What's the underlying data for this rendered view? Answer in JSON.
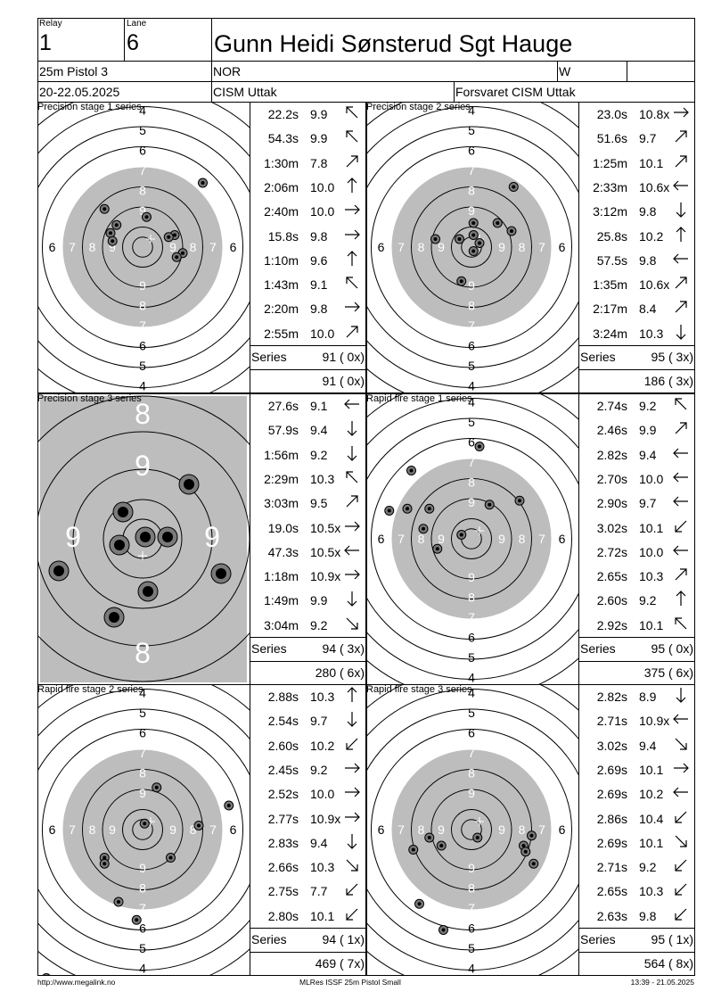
{
  "header": {
    "relay_label": "Relay",
    "relay": "1",
    "lane_label": "Lane",
    "lane": "6",
    "name": "Gunn Heidi Sønsterud Sgt Hauge",
    "event": "25m Pistol 3",
    "nation": "NOR",
    "gender": "W",
    "date": "20-22.05.2025",
    "competition": "CISM Uttak",
    "club": "Forsvaret CISM Uttak"
  },
  "stages": [
    {
      "title": "Precision stage 1 series",
      "zoom": false,
      "shots": [
        {
          "t": "22.2s",
          "s": "9.9",
          "dir": "upleft"
        },
        {
          "t": "54.3s",
          "s": "9.9",
          "dir": "upleft"
        },
        {
          "t": "1:30m",
          "s": "7.8",
          "dir": "upright"
        },
        {
          "t": "2:06m",
          "s": "10.0",
          "dir": "up"
        },
        {
          "t": "2:40m",
          "s": "10.0",
          "dir": "right"
        },
        {
          "t": "15.8s",
          "s": "9.8",
          "dir": "right"
        },
        {
          "t": "1:10m",
          "s": "9.6",
          "dir": "up"
        },
        {
          "t": "1:43m",
          "s": "9.1",
          "dir": "upleft"
        },
        {
          "t": "2:20m",
          "s": "9.8",
          "dir": "right"
        },
        {
          "t": "2:55m",
          "s": "10.0",
          "dir": "upright"
        }
      ],
      "series_label": "Series",
      "series": "91 ( 0x)",
      "total": "91 ( 0x)"
    },
    {
      "title": "Precision stage 2 series",
      "zoom": false,
      "shots": [
        {
          "t": "23.0s",
          "s": "10.8x",
          "dir": "right"
        },
        {
          "t": "51.6s",
          "s": "9.7",
          "dir": "upright"
        },
        {
          "t": "1:25m",
          "s": "10.1",
          "dir": "upright"
        },
        {
          "t": "2:33m",
          "s": "10.6x",
          "dir": "left"
        },
        {
          "t": "3:12m",
          "s": "9.8",
          "dir": "down"
        },
        {
          "t": "25.8s",
          "s": "10.2",
          "dir": "up"
        },
        {
          "t": "57.5s",
          "s": "9.8",
          "dir": "left"
        },
        {
          "t": "1:35m",
          "s": "10.6x",
          "dir": "upright"
        },
        {
          "t": "2:17m",
          "s": "8.4",
          "dir": "upright"
        },
        {
          "t": "3:24m",
          "s": "10.3",
          "dir": "down"
        }
      ],
      "series_label": "Series",
      "series": "95 ( 3x)",
      "total": "186 ( 3x)"
    },
    {
      "title": "Precision stage 3 series",
      "zoom": true,
      "shots": [
        {
          "t": "27.6s",
          "s": "9.1",
          "dir": "left"
        },
        {
          "t": "57.9s",
          "s": "9.4",
          "dir": "down"
        },
        {
          "t": "1:56m",
          "s": "9.2",
          "dir": "down"
        },
        {
          "t": "2:29m",
          "s": "10.3",
          "dir": "upleft"
        },
        {
          "t": "3:03m",
          "s": "9.5",
          "dir": "upright"
        },
        {
          "t": "19.0s",
          "s": "10.5x",
          "dir": "right"
        },
        {
          "t": "47.3s",
          "s": "10.5x",
          "dir": "left"
        },
        {
          "t": "1:18m",
          "s": "10.9x",
          "dir": "right"
        },
        {
          "t": "1:49m",
          "s": "9.9",
          "dir": "down"
        },
        {
          "t": "3:04m",
          "s": "9.2",
          "dir": "downright"
        }
      ],
      "series_label": "Series",
      "series": "94 ( 3x)",
      "total": "280 ( 6x)"
    },
    {
      "title": "Rapid fire stage 1 series",
      "zoom": false,
      "shots": [
        {
          "t": "2.74s",
          "s": "9.2",
          "dir": "upleft"
        },
        {
          "t": "2.46s",
          "s": "9.9",
          "dir": "upright"
        },
        {
          "t": "2.82s",
          "s": "9.4",
          "dir": "left"
        },
        {
          "t": "2.70s",
          "s": "10.0",
          "dir": "left"
        },
        {
          "t": "2.90s",
          "s": "9.7",
          "dir": "left"
        },
        {
          "t": "3.02s",
          "s": "10.1",
          "dir": "downleft"
        },
        {
          "t": "2.72s",
          "s": "10.0",
          "dir": "left"
        },
        {
          "t": "2.65s",
          "s": "10.3",
          "dir": "upright"
        },
        {
          "t": "2.60s",
          "s": "9.2",
          "dir": "up"
        },
        {
          "t": "2.92s",
          "s": "10.1",
          "dir": "upleft"
        }
      ],
      "series_label": "Series",
      "series": "95 ( 0x)",
      "total": "375 ( 6x)"
    },
    {
      "title": "Rapid fire stage 2 series",
      "zoom": false,
      "shots": [
        {
          "t": "2.88s",
          "s": "10.3",
          "dir": "up"
        },
        {
          "t": "2.54s",
          "s": "9.7",
          "dir": "down"
        },
        {
          "t": "2.60s",
          "s": "10.2",
          "dir": "downleft"
        },
        {
          "t": "2.45s",
          "s": "9.2",
          "dir": "right"
        },
        {
          "t": "2.52s",
          "s": "10.0",
          "dir": "right"
        },
        {
          "t": "2.77s",
          "s": "10.9x",
          "dir": "right"
        },
        {
          "t": "2.83s",
          "s": "9.4",
          "dir": "down"
        },
        {
          "t": "2.66s",
          "s": "10.3",
          "dir": "downright"
        },
        {
          "t": "2.75s",
          "s": "7.7",
          "dir": "downleft"
        },
        {
          "t": "2.80s",
          "s": "10.1",
          "dir": "downleft"
        }
      ],
      "series_label": "Series",
      "series": "94 ( 1x)",
      "total": "469 ( 7x)"
    },
    {
      "title": "Rapid fire stage 3 series",
      "zoom": false,
      "shots": [
        {
          "t": "2.82s",
          "s": "8.9",
          "dir": "down"
        },
        {
          "t": "2.71s",
          "s": "10.9x",
          "dir": "left"
        },
        {
          "t": "3.02s",
          "s": "9.4",
          "dir": "downright"
        },
        {
          "t": "2.69s",
          "s": "10.1",
          "dir": "right"
        },
        {
          "t": "2.69s",
          "s": "10.2",
          "dir": "left"
        },
        {
          "t": "2.86s",
          "s": "10.4",
          "dir": "downleft"
        },
        {
          "t": "2.69s",
          "s": "10.1",
          "dir": "downright"
        },
        {
          "t": "2.71s",
          "s": "9.2",
          "dir": "downleft"
        },
        {
          "t": "2.65s",
          "s": "10.3",
          "dir": "downleft"
        },
        {
          "t": "2.63s",
          "s": "9.8",
          "dir": "downleft"
        }
      ],
      "series_label": "Series",
      "series": "95 ( 1x)",
      "total": "564 ( 8x)"
    }
  ],
  "footer": {
    "left": "http://www.megalink.no",
    "center": "MLRes ISSF 25m Pistol Small",
    "right": "13:39 - 21.05.2025"
  }
}
